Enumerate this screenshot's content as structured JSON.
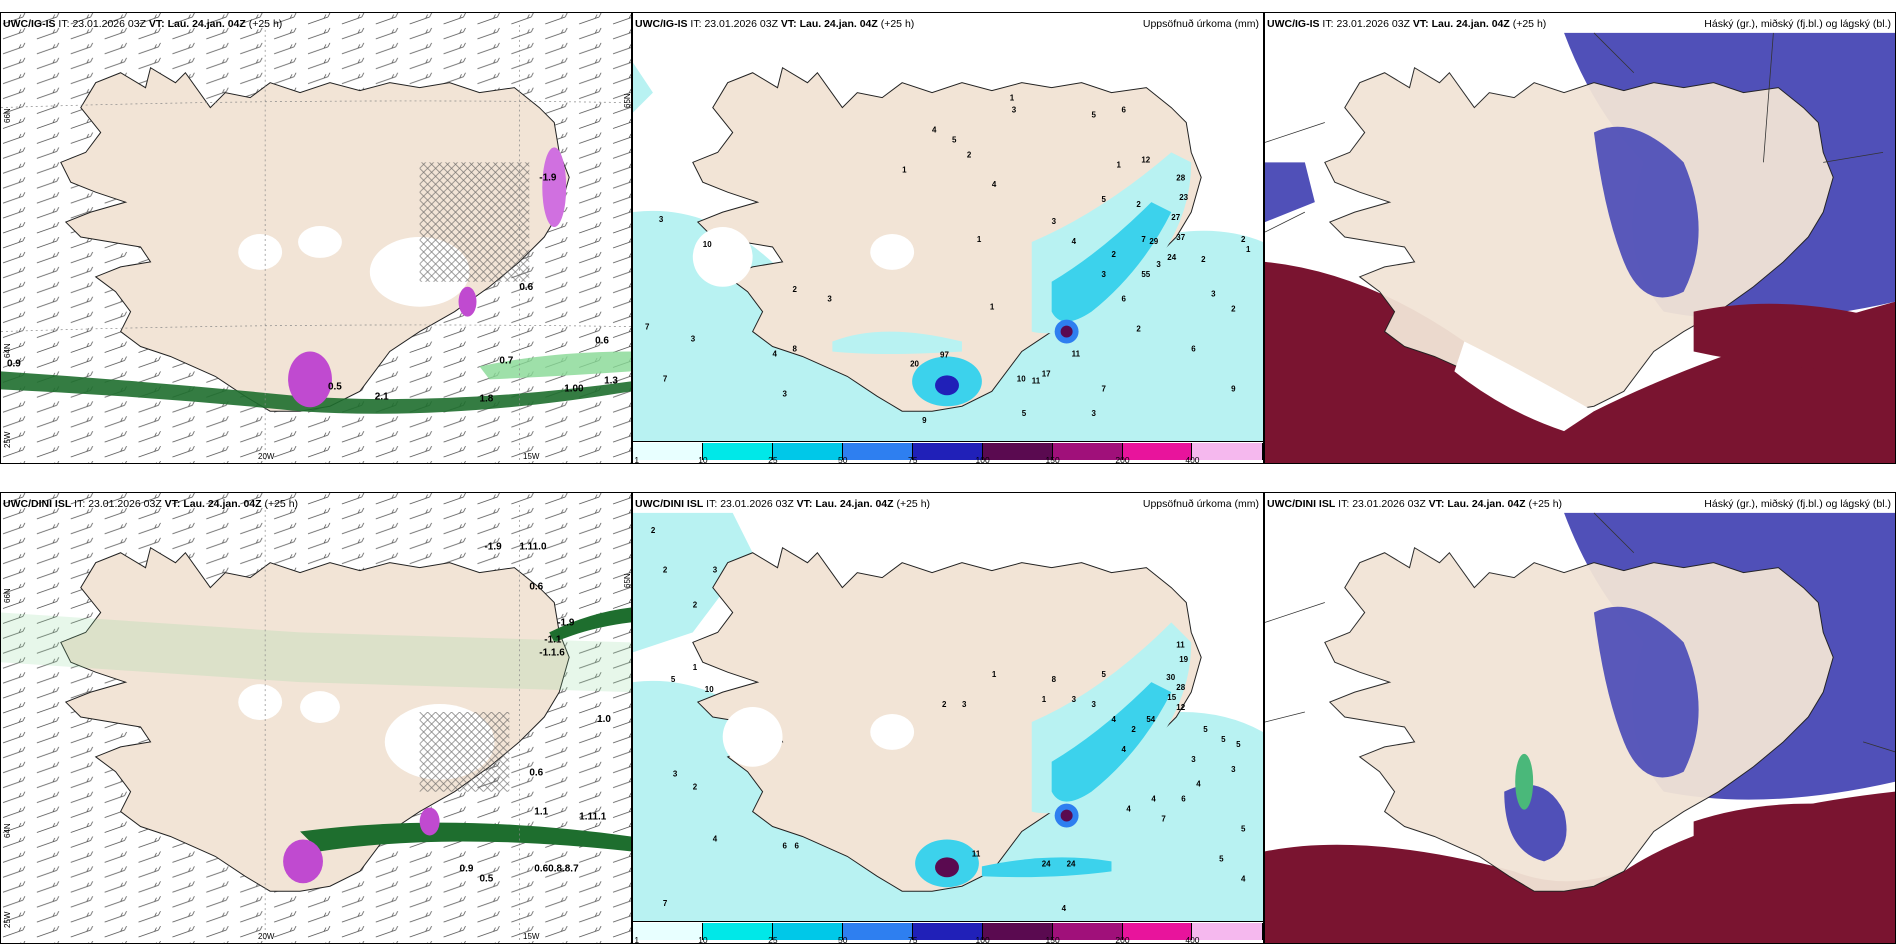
{
  "panels": [
    {
      "id": "p1",
      "model": "UWC/IG-IS",
      "it_label": "IT:",
      "it": "23.01.2026 03Z",
      "vt_label": "VT:",
      "vt": "Lau. 24.jan. 04Z",
      "lead": "(+25 h)",
      "right_title": ""
    },
    {
      "id": "p2",
      "model": "UWC/IG-IS",
      "it_label": "IT:",
      "it": "23.01.2026 03Z",
      "vt_label": "VT:",
      "vt": "Lau. 24.jan. 04Z",
      "lead": "(+25 h)",
      "right_title": "Uppsöfnuð úrkoma (mm)"
    },
    {
      "id": "p3",
      "model": "UWC/IG-IS",
      "it_label": "IT:",
      "it": "23.01.2026 03Z",
      "vt_label": "VT:",
      "vt": "Lau. 24.jan. 04Z",
      "lead": "(+25 h)",
      "right_title": "Háský (gr.), miðský (fj.bl.) og lágský (bl.)"
    },
    {
      "id": "p4",
      "model": "UWC/DINI ISL",
      "it_label": "IT:",
      "it": "23.01.2026 03Z",
      "vt_label": "VT:",
      "vt": "Lau. 24.jan. 04Z",
      "lead": "(+25 h)",
      "right_title": ""
    },
    {
      "id": "p5",
      "model": "UWC/DINI ISL",
      "it_label": "IT:",
      "it": "23.01.2026 03Z",
      "vt_label": "VT:",
      "vt": "Lau. 24.jan. 04Z",
      "lead": "(+25 h)",
      "right_title": "Uppsöfnuð úrkoma (mm)"
    },
    {
      "id": "p6",
      "model": "UWC/DINI ISL",
      "it_label": "IT:",
      "it": "23.01.2026 03Z",
      "vt_label": "VT:",
      "vt": "Lau. 24.jan. 04Z",
      "lead": "(+25 h)",
      "right_title": "Háský (gr.), miðský (fj.bl.) og lágský (bl.)"
    }
  ],
  "axes": {
    "lon_20w": "20W",
    "lon_15w": "15W",
    "lat_66n": "66N",
    "lat_64n": "64N",
    "lat_25w": "25W",
    "lat_65n": "65N"
  },
  "colorbar": {
    "labels": [
      "1",
      "10",
      "25",
      "50",
      "75",
      "100",
      "150",
      "200",
      "400"
    ],
    "colors": [
      "#e8ffff",
      "#00e8e8",
      "#00c8e8",
      "#2e7ff0",
      "#2020b8",
      "#5a0a50",
      "#a0107a",
      "#e8149c",
      "#f5b8ee"
    ]
  },
  "colors": {
    "land": "#f2e4d6",
    "ocean_precip": "#b8f2f2",
    "precip_mid": "#3cd2ec",
    "mid_cloud": "#5050b8",
    "low_cloud": "#7a1430",
    "high_cloud": "#4ab87a",
    "wind_green": "#1e6e2e"
  },
  "labels_p1": [
    "0.9",
    "0.6",
    "0.6",
    "0.7",
    "1.00",
    "-1.9",
    "1.8",
    "2.1",
    "1.3",
    "0.5"
  ],
  "labels_p4": [
    "-1.9",
    "1.11.0",
    "0.6",
    "-1.9",
    "-1.1",
    "-1.1.6",
    "1.0",
    "0.6",
    "1.1",
    "1.11.1",
    "0.60.8.8.7",
    "0.9",
    "0.5"
  ],
  "labels_p2": [
    "3",
    "10",
    "7",
    "3",
    "7",
    "4",
    "8",
    "2",
    "3",
    "3",
    "1",
    "2",
    "4",
    "1",
    "3",
    "4",
    "5",
    "1",
    "2",
    "2",
    "3",
    "6",
    "7",
    "3",
    "2",
    "12",
    "28",
    "23",
    "27",
    "37",
    "24",
    "29",
    "55",
    "2",
    "1",
    "3",
    "2",
    "6",
    "7",
    "9",
    "10",
    "11",
    "11",
    "17",
    "20",
    "97",
    "5",
    "3",
    "9",
    "1",
    "5",
    "4",
    "1",
    "3",
    "5",
    "6",
    "2"
  ],
  "labels_p5": [
    "2",
    "2",
    "3",
    "2",
    "5",
    "1",
    "10",
    "3",
    "2",
    "4",
    "7",
    "6",
    "6",
    "2",
    "3",
    "1",
    "3",
    "3",
    "4",
    "5",
    "2",
    "4",
    "8",
    "1",
    "11",
    "19",
    "30",
    "28",
    "15",
    "12",
    "54",
    "5",
    "5",
    "5",
    "3",
    "3",
    "4",
    "4",
    "5",
    "11",
    "24",
    "24",
    "4",
    "6",
    "7",
    "5",
    "4",
    "4"
  ]
}
